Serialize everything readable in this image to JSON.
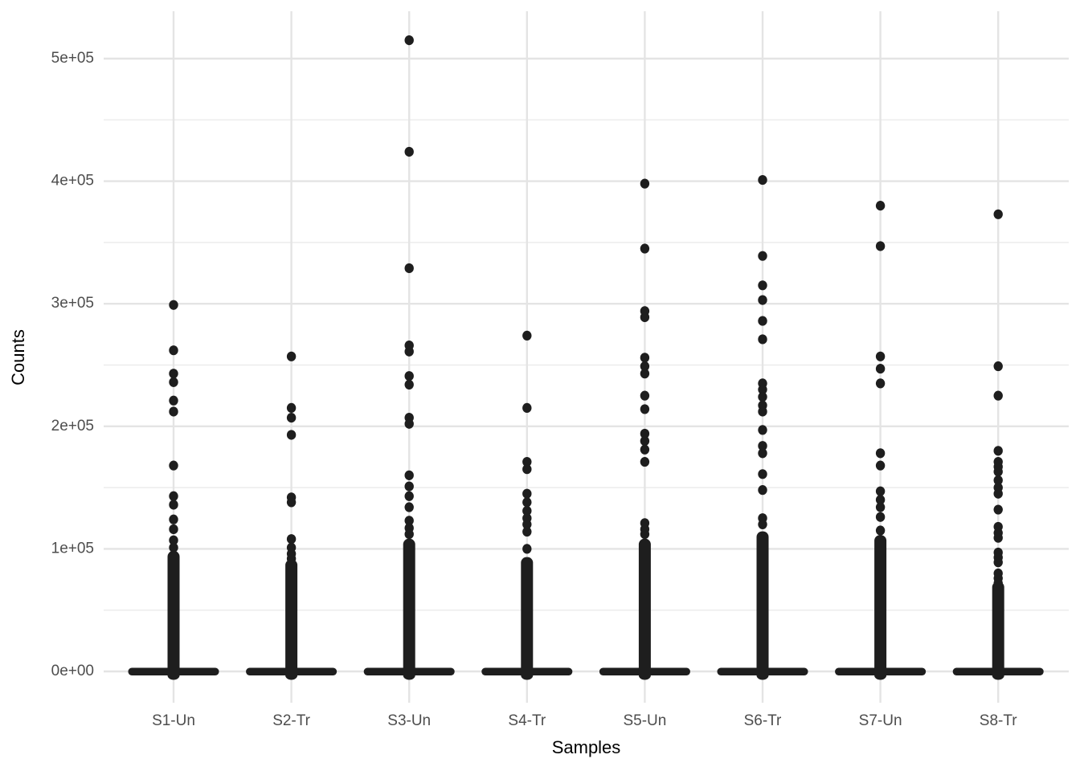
{
  "chart_data": {
    "type": "scatter",
    "title": "",
    "xlabel": "Samples",
    "ylabel": "Counts",
    "categories": [
      "S1-Un",
      "S2-Tr",
      "S3-Un",
      "S4-Tr",
      "S5-Un",
      "S6-Tr",
      "S7-Un",
      "S8-Tr"
    ],
    "y_tick_labels": [
      "0e+00",
      "1e+05",
      "2e+05",
      "3e+05",
      "4e+05",
      "5e+05"
    ],
    "y_tick_values": [
      0,
      100000,
      200000,
      300000,
      400000,
      500000
    ],
    "y_minor_tick_values": [
      50000,
      150000,
      250000,
      350000,
      450000
    ],
    "ylim": [
      0,
      540000
    ],
    "grid": true,
    "legend": "none",
    "point_color": "#1e1e1e",
    "grid_major_color": "#e4e4e4",
    "grid_minor_color": "#ececec",
    "tick_label_color": "#4d4d4d",
    "axis_title_color": "#000000",
    "background_color": "#ffffff",
    "dense_description": "Each sample shows a dense mass of near-zero counts: a horizontal band of points at y=0 (boxplot-like band) and a solid vertical column of overlapping points from 0 up to dense_column_max, with discrete outlier points above.",
    "series": [
      {
        "name": "S1-Un",
        "dense_column_max": 95000,
        "outliers": [
          299000,
          262000,
          243000,
          236000,
          221000,
          212000,
          168000,
          143000,
          136000,
          124000,
          116000,
          107000,
          101000
        ]
      },
      {
        "name": "S2-Tr",
        "dense_column_max": 88000,
        "outliers": [
          257000,
          215000,
          207000,
          193000,
          142000,
          138000,
          108000,
          101000,
          96000,
          92000
        ]
      },
      {
        "name": "S3-Un",
        "dense_column_max": 105000,
        "outliers": [
          515000,
          424000,
          329000,
          266000,
          261000,
          241000,
          234000,
          207000,
          202000,
          160000,
          151000,
          143000,
          134000,
          123000,
          117000,
          112000
        ]
      },
      {
        "name": "S4-Tr",
        "dense_column_max": 90000,
        "outliers": [
          274000,
          215000,
          171000,
          165000,
          145000,
          138000,
          131000,
          125000,
          120000,
          114000,
          100000
        ]
      },
      {
        "name": "S5-Un",
        "dense_column_max": 105000,
        "outliers": [
          398000,
          345000,
          294000,
          289000,
          256000,
          249000,
          243000,
          225000,
          214000,
          194000,
          188000,
          181000,
          171000,
          121000,
          116000,
          112000
        ]
      },
      {
        "name": "S6-Tr",
        "dense_column_max": 111000,
        "outliers": [
          401000,
          339000,
          315000,
          303000,
          286000,
          271000,
          235000,
          230000,
          224000,
          217000,
          212000,
          197000,
          184000,
          178000,
          161000,
          148000,
          125000,
          120000
        ]
      },
      {
        "name": "S7-Un",
        "dense_column_max": 108000,
        "outliers": [
          380000,
          347000,
          257000,
          247000,
          235000,
          178000,
          168000,
          147000,
          140000,
          134000,
          126000,
          115000
        ]
      },
      {
        "name": "S8-Tr",
        "dense_column_max": 70000,
        "outliers": [
          373000,
          249000,
          225000,
          180000,
          171000,
          167000,
          163000,
          156000,
          150000,
          145000,
          132000,
          118000,
          113000,
          109000,
          97000,
          93000,
          89000,
          80000,
          76000,
          72000
        ]
      }
    ]
  }
}
